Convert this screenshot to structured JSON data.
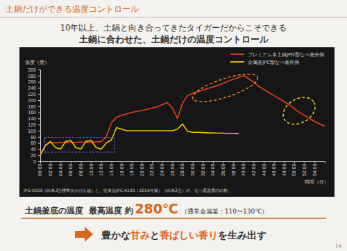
{
  "header": {
    "section_title": "土鍋だけができる温度コントロール",
    "headline": [
      "10年以上、土鍋と向き合ってきたタイガーだからこそできる",
      "土鍋に合わせた、土鍋だけの温度コントロール"
    ]
  },
  "chart_data": {
    "type": "line",
    "y_label": "温度（度）",
    "x_label": "時間（分）",
    "note": "JPG-X100（白米3合標準火かげん値）と、従来品JPC-A100（2016年製）（白米3合）の、なべ底温度の比較。",
    "x": [
      0,
      1,
      2,
      3,
      4,
      5,
      6,
      7,
      8,
      9,
      10,
      11,
      12,
      13,
      14,
      15,
      16,
      17,
      18,
      19,
      20,
      21,
      22,
      23,
      24,
      25,
      26,
      27,
      28,
      29,
      30,
      31,
      32,
      33,
      34,
      35,
      36,
      37,
      38,
      39,
      40,
      41,
      42,
      43,
      44,
      45,
      46,
      47,
      48,
      49,
      50,
      51,
      52,
      53,
      54,
      55,
      56
    ],
    "series": [
      {
        "name": "プレミアム本土鍋JPG型なべ底外側",
        "color": "#e8401c",
        "values": [
          20,
          55,
          62,
          60,
          62,
          61,
          63,
          62,
          63,
          62,
          64,
          63,
          65,
          80,
          125,
          145,
          150,
          155,
          160,
          163,
          166,
          170,
          174,
          178,
          185,
          192,
          175,
          140,
          190,
          215,
          222,
          228,
          233,
          238,
          243,
          248,
          255,
          262,
          268,
          274,
          280,
          270,
          258,
          245,
          235,
          225,
          215,
          205,
          195,
          185,
          172,
          160,
          150,
          140,
          130,
          122,
          115
        ]
      },
      {
        "name": "金属釜JPC型なべ底外側",
        "color": "#f5c400",
        "values": [
          20,
          50,
          65,
          45,
          40,
          65,
          68,
          45,
          40,
          65,
          68,
          45,
          40,
          60,
          70,
          110,
          105,
          100,
          100,
          100,
          100,
          100,
          100,
          100,
          100,
          100,
          100,
          105,
          122,
          98,
          95,
          95,
          94,
          93,
          93,
          92,
          92,
          91,
          91,
          90,
          null,
          null,
          null,
          null,
          null,
          null,
          null,
          null,
          null,
          null,
          null,
          null,
          null,
          null,
          null,
          null,
          null
        ]
      }
    ],
    "xlim": [
      0,
      56
    ],
    "xticks": [
      {
        "value": 0,
        "label": "00:00"
      },
      {
        "value": 2,
        "label": "02:00"
      },
      {
        "value": 4,
        "label": "04:00"
      },
      {
        "value": 6,
        "label": "06:00"
      },
      {
        "value": 8,
        "label": "08:00"
      },
      {
        "value": 10,
        "label": "10:00"
      },
      {
        "value": 12,
        "label": "12:00"
      },
      {
        "value": 14,
        "label": "14:00"
      },
      {
        "value": 16,
        "label": "16:00"
      },
      {
        "value": 18,
        "label": "18:00"
      },
      {
        "value": 20,
        "label": "20:00"
      },
      {
        "value": 22,
        "label": "22:00"
      },
      {
        "value": 24,
        "label": "24:00"
      },
      {
        "value": 26,
        "label": "26:00"
      },
      {
        "value": 28,
        "label": "28:00"
      },
      {
        "value": 30,
        "label": "30:00"
      },
      {
        "value": 32,
        "label": "32:00"
      },
      {
        "value": 34,
        "label": "34:00"
      },
      {
        "value": 36,
        "label": "36:00"
      },
      {
        "value": 38,
        "label": "38:00"
      },
      {
        "value": 40,
        "label": "40:00"
      },
      {
        "value": 42,
        "label": "42:00"
      },
      {
        "value": 44,
        "label": "44:00"
      },
      {
        "value": 46,
        "label": "46:00"
      },
      {
        "value": 48,
        "label": "48:00"
      },
      {
        "value": 50,
        "label": "50:00"
      },
      {
        "value": 52,
        "label": "52:00"
      },
      {
        "value": 54,
        "label": "54:00"
      }
    ],
    "ylim": [
      0,
      300
    ],
    "yticks": [
      0,
      20,
      40,
      60,
      80,
      100,
      120,
      140,
      160,
      180,
      200,
      220,
      240,
      260,
      280,
      300
    ],
    "grid": false,
    "legend": "top-right"
  },
  "summary": {
    "label": "土鍋釜底の温度",
    "max_label": "最高温度 約",
    "max_value": "280℃",
    "note": "（通常金属釜：110〜130℃）"
  },
  "conclusion": {
    "parts": [
      "豊かな",
      "甘み",
      "と",
      "香ばしい香り",
      "を生み出す"
    ]
  },
  "page_number": "14"
}
